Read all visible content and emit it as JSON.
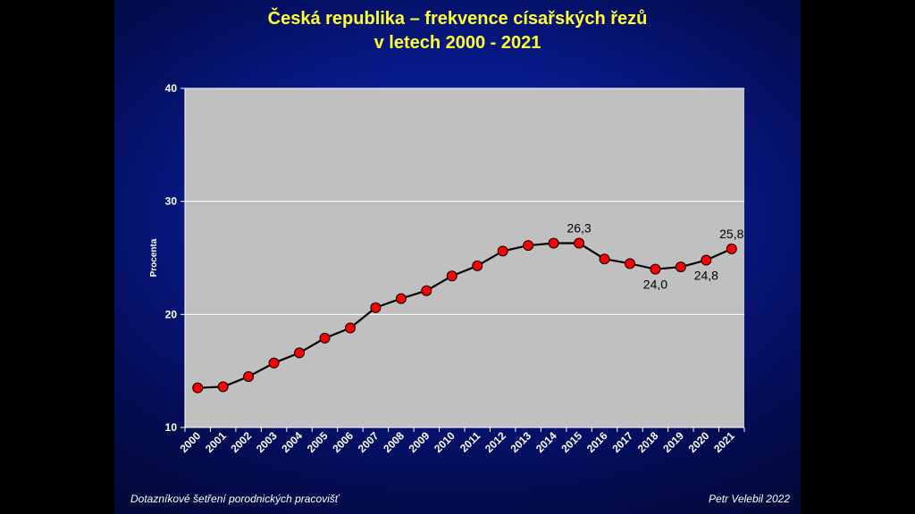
{
  "title_line1": "Česká republika – frekvence císařských řezů",
  "title_line2": "v letech 2000 - 2021",
  "footer_left": "Dotazníkové šetření porodnických pracovišť",
  "footer_right": "Petr Velebil 2022",
  "colors": {
    "plot_background": "#c0c0c0",
    "line": "#000000",
    "marker": "#ff0000",
    "title": "#ffff33",
    "text": "#ffffff"
  },
  "chart_data": {
    "type": "line",
    "title": "Česká republika – frekvence císařských řezů v letech 2000 - 2021",
    "xlabel": "",
    "ylabel": "Procenta",
    "ylim": [
      10,
      40
    ],
    "yticks": [
      10,
      20,
      30,
      40
    ],
    "grid": "horizontal",
    "categories": [
      "2000",
      "2001",
      "2002",
      "2003",
      "2004",
      "2005",
      "2006",
      "2007",
      "2008",
      "2009",
      "2010",
      "2011",
      "2012",
      "2013",
      "2014",
      "2015",
      "2016",
      "2017",
      "2018",
      "2019",
      "2020",
      "2021"
    ],
    "values": [
      13.5,
      13.6,
      14.5,
      15.7,
      16.6,
      17.9,
      18.8,
      20.6,
      21.4,
      22.1,
      23.4,
      24.3,
      25.6,
      26.1,
      26.3,
      26.3,
      24.9,
      24.5,
      24.0,
      24.2,
      24.8,
      25.8
    ],
    "data_labels": [
      {
        "index": 15,
        "text": "26,3",
        "position": "above"
      },
      {
        "index": 18,
        "text": "24,0",
        "position": "below"
      },
      {
        "index": 20,
        "text": "24,8",
        "position": "below"
      },
      {
        "index": 21,
        "text": "25,8",
        "position": "above"
      }
    ]
  }
}
